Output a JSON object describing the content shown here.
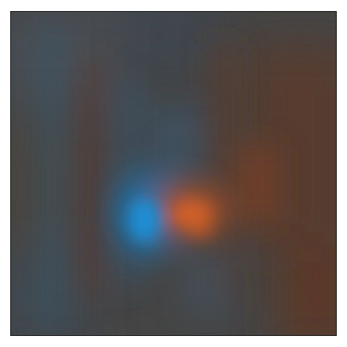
{
  "image": {
    "colors": {
      "base": "#454545",
      "warm": "#7a4530",
      "warm_peak": "#d2612a",
      "cool": "#3f5d70",
      "cool_peak": "#1b8fd6",
      "border": "#1a1a1a"
    }
  }
}
